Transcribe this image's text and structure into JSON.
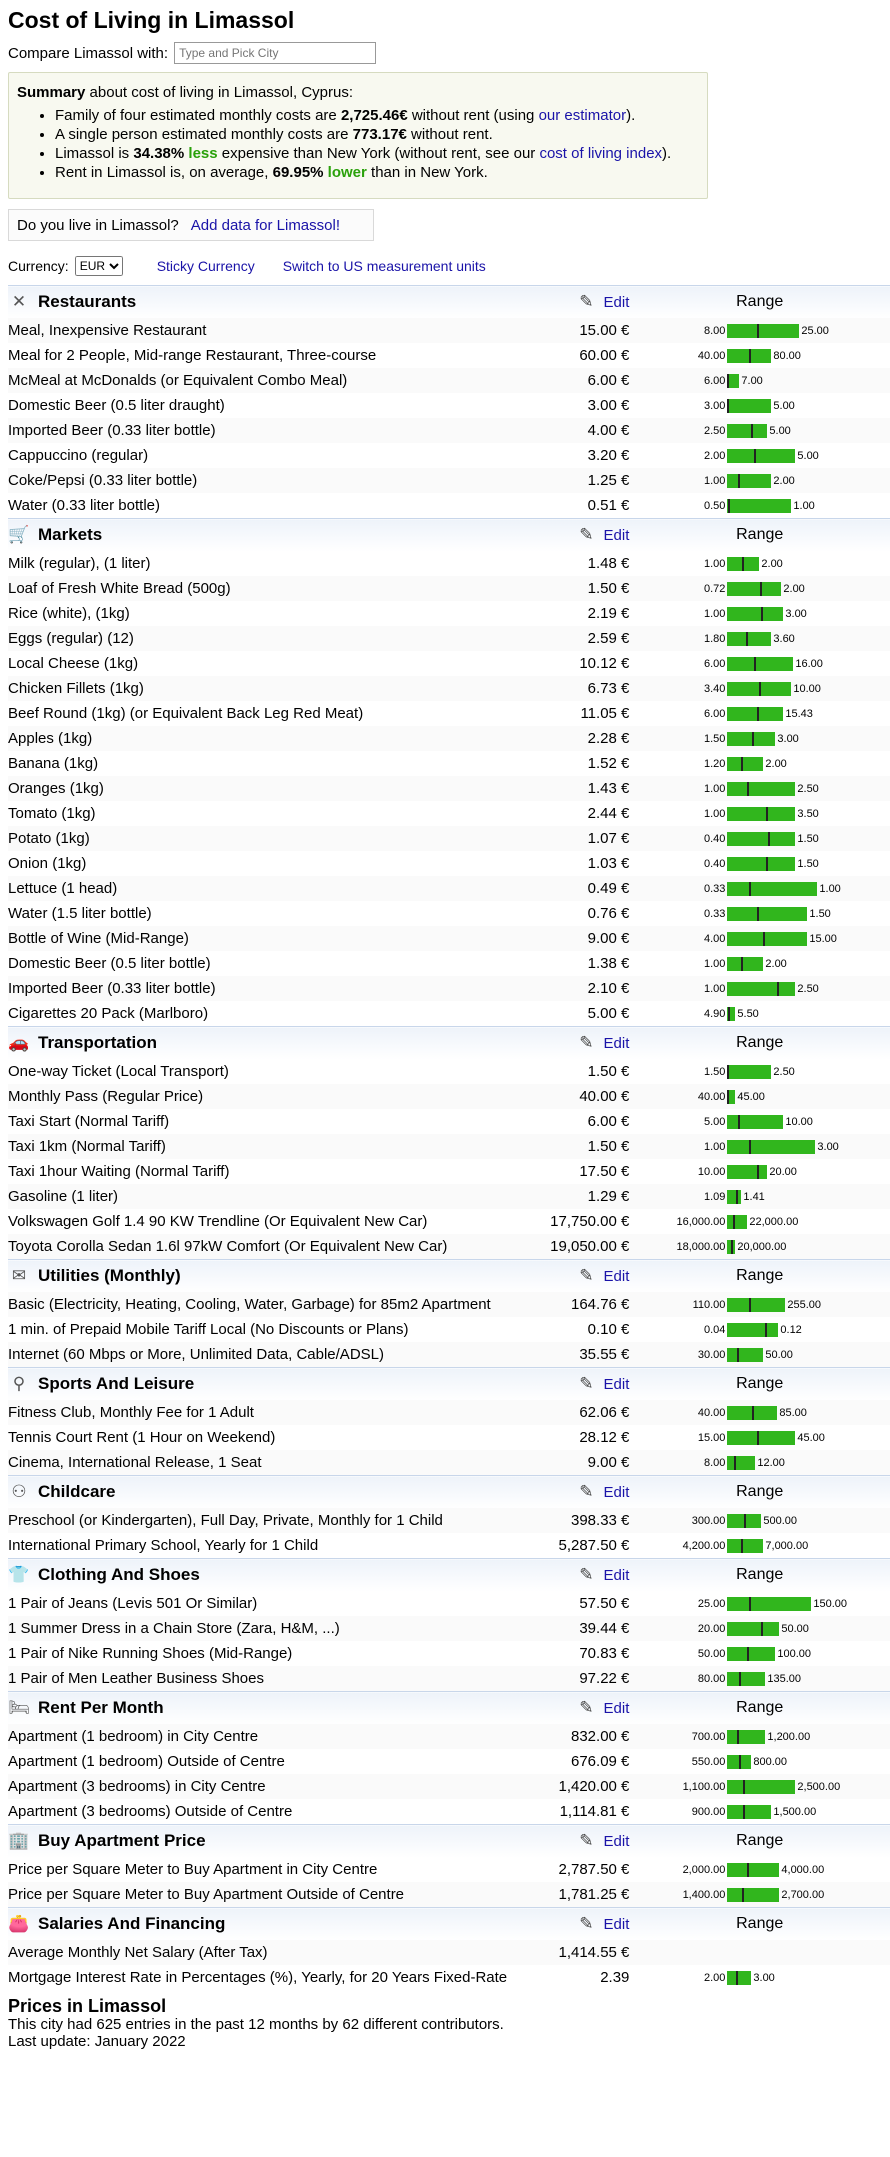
{
  "title": "Cost of Living in Limassol",
  "compare": {
    "label": "Compare Limassol with:",
    "placeholder": "Type and Pick City"
  },
  "summary": {
    "lead_bold": "Summary",
    "lead_rest": " about cost of living in Limassol, Cyprus:",
    "l1_a": "Family of four estimated monthly costs are ",
    "l1_b": "2,725.46€",
    "l1_c": " without rent (using ",
    "l1_link": "our estimator",
    "l1_d": ").",
    "l2_a": "A single person estimated monthly costs are ",
    "l2_b": "773.17€",
    "l2_c": " without rent.",
    "l3_a": "Limassol is ",
    "l3_b": "34.38%",
    "l3_less": "less",
    "l3_c": " expensive than New York (without rent, see our ",
    "l3_link": "cost of living index",
    "l3_d": ").",
    "l4_a": "Rent in Limassol is, on average, ",
    "l4_b": "69.95%",
    "l4_lower": "lower",
    "l4_c": " than in New York."
  },
  "live": {
    "question": "Do you live in Limassol?",
    "link": "Add data for Limassol!"
  },
  "currency": {
    "label": "Currency:",
    "selected": "EUR",
    "sticky": "Sticky Currency",
    "switch": "Switch to US measurement units"
  },
  "edit_label": "Edit",
  "range_label": "Range",
  "categories": [
    {
      "name": "Restaurants",
      "icon": "fork-knife-icon",
      "glyph": "✕",
      "items": [
        {
          "name": "Meal, Inexpensive Restaurant",
          "price": "15.00 €",
          "low": "8.00",
          "high": "25.00",
          "frac": 0.41,
          "span": 0.9
        },
        {
          "name": "Meal for 2 People, Mid-range Restaurant, Three-course",
          "price": "60.00 €",
          "low": "40.00",
          "high": "80.00",
          "frac": 0.5,
          "span": 0.55
        },
        {
          "name": "McMeal at McDonalds (or Equivalent Combo Meal)",
          "price": "6.00 €",
          "low": "6.00",
          "high": "7.00",
          "frac": 0.0,
          "span": 0.15
        },
        {
          "name": "Domestic Beer (0.5 liter draught)",
          "price": "3.00 €",
          "low": "3.00",
          "high": "5.00",
          "frac": 0.0,
          "span": 0.55
        },
        {
          "name": "Imported Beer (0.33 liter bottle)",
          "price": "4.00 €",
          "low": "2.50",
          "high": "5.00",
          "frac": 0.6,
          "span": 0.5
        },
        {
          "name": "Cappuccino (regular)",
          "price": "3.20 €",
          "low": "2.00",
          "high": "5.00",
          "frac": 0.4,
          "span": 0.85
        },
        {
          "name": "Coke/Pepsi (0.33 liter bottle)",
          "price": "1.25 €",
          "low": "1.00",
          "high": "2.00",
          "frac": 0.25,
          "span": 0.55
        },
        {
          "name": "Water (0.33 liter bottle)",
          "price": "0.51 €",
          "low": "0.50",
          "high": "1.00",
          "frac": 0.02,
          "span": 0.8
        }
      ]
    },
    {
      "name": "Markets",
      "icon": "cart-icon",
      "glyph": "🛒",
      "items": [
        {
          "name": "Milk (regular), (1 liter)",
          "price": "1.48 €",
          "low": "1.00",
          "high": "2.00",
          "frac": 0.48,
          "span": 0.4
        },
        {
          "name": "Loaf of Fresh White Bread (500g)",
          "price": "1.50 €",
          "low": "0.72",
          "high": "2.00",
          "frac": 0.61,
          "span": 0.68
        },
        {
          "name": "Rice (white), (1kg)",
          "price": "2.19 €",
          "low": "1.00",
          "high": "3.00",
          "frac": 0.6,
          "span": 0.7
        },
        {
          "name": "Eggs (regular) (12)",
          "price": "2.59 €",
          "low": "1.80",
          "high": "3.60",
          "frac": 0.44,
          "span": 0.55
        },
        {
          "name": "Local Cheese (1kg)",
          "price": "10.12 €",
          "low": "6.00",
          "high": "16.00",
          "frac": 0.41,
          "span": 0.82
        },
        {
          "name": "Chicken Fillets (1kg)",
          "price": "6.73 €",
          "low": "3.40",
          "high": "10.00",
          "frac": 0.5,
          "span": 0.8
        },
        {
          "name": "Beef Round (1kg) (or Equivalent Back Leg Red Meat)",
          "price": "11.05 €",
          "low": "6.00",
          "high": "15.43",
          "frac": 0.54,
          "span": 0.7
        },
        {
          "name": "Apples (1kg)",
          "price": "2.28 €",
          "low": "1.50",
          "high": "3.00",
          "frac": 0.52,
          "span": 0.6
        },
        {
          "name": "Banana (1kg)",
          "price": "1.52 €",
          "low": "1.20",
          "high": "2.00",
          "frac": 0.4,
          "span": 0.45
        },
        {
          "name": "Oranges (1kg)",
          "price": "1.43 €",
          "low": "1.00",
          "high": "2.50",
          "frac": 0.29,
          "span": 0.85
        },
        {
          "name": "Tomato (1kg)",
          "price": "2.44 €",
          "low": "1.00",
          "high": "3.50",
          "frac": 0.58,
          "span": 0.85
        },
        {
          "name": "Potato (1kg)",
          "price": "1.07 €",
          "low": "0.40",
          "high": "1.50",
          "frac": 0.61,
          "span": 0.85
        },
        {
          "name": "Onion (1kg)",
          "price": "1.03 €",
          "low": "0.40",
          "high": "1.50",
          "frac": 0.57,
          "span": 0.85
        },
        {
          "name": "Lettuce (1 head)",
          "price": "0.49 €",
          "low": "0.33",
          "high": "1.00",
          "frac": 0.24,
          "span": 1.13
        },
        {
          "name": "Water (1.5 liter bottle)",
          "price": "0.76 €",
          "low": "0.33",
          "high": "1.50",
          "frac": 0.37,
          "span": 1.0
        },
        {
          "name": "Bottle of Wine (Mid-Range)",
          "price": "9.00 €",
          "low": "4.00",
          "high": "15.00",
          "frac": 0.45,
          "span": 1.0
        },
        {
          "name": "Domestic Beer (0.5 liter bottle)",
          "price": "1.38 €",
          "low": "1.00",
          "high": "2.00",
          "frac": 0.38,
          "span": 0.45
        },
        {
          "name": "Imported Beer (0.33 liter bottle)",
          "price": "2.10 €",
          "low": "1.00",
          "high": "2.50",
          "frac": 0.73,
          "span": 0.85
        },
        {
          "name": "Cigarettes 20 Pack (Marlboro)",
          "price": "5.00 €",
          "low": "4.90",
          "high": "5.50",
          "frac": 0.17,
          "span": 0.1
        }
      ]
    },
    {
      "name": "Transportation",
      "icon": "car-icon",
      "glyph": "🚗",
      "items": [
        {
          "name": "One-way Ticket (Local Transport)",
          "price": "1.50 €",
          "low": "1.50",
          "high": "2.50",
          "frac": 0.0,
          "span": 0.55
        },
        {
          "name": "Monthly Pass (Regular Price)",
          "price": "40.00 €",
          "low": "40.00",
          "high": "45.00",
          "frac": 0.0,
          "span": 0.1
        },
        {
          "name": "Taxi Start (Normal Tariff)",
          "price": "6.00 €",
          "low": "5.00",
          "high": "10.00",
          "frac": 0.2,
          "span": 0.7
        },
        {
          "name": "Taxi 1km (Normal Tariff)",
          "price": "1.50 €",
          "low": "1.00",
          "high": "3.00",
          "frac": 0.25,
          "span": 1.1
        },
        {
          "name": "Taxi 1hour Waiting (Normal Tariff)",
          "price": "17.50 €",
          "low": "10.00",
          "high": "20.00",
          "frac": 0.75,
          "span": 0.5
        },
        {
          "name": "Gasoline (1 liter)",
          "price": "1.29 €",
          "low": "1.09",
          "high": "1.41",
          "frac": 0.62,
          "span": 0.17
        },
        {
          "name": "Volkswagen Golf 1.4 90 KW Trendline (Or Equivalent New Car)",
          "price": "17,750.00 €",
          "low": "16,000.00",
          "high": "22,000.00",
          "frac": 0.29,
          "span": 0.25
        },
        {
          "name": "Toyota Corolla Sedan 1.6l 97kW Comfort (Or Equivalent New Car)",
          "price": "19,050.00 €",
          "low": "18,000.00",
          "high": "20,000.00",
          "frac": 0.52,
          "span": 0.1
        }
      ]
    },
    {
      "name": "Utilities (Monthly)",
      "icon": "envelope-icon",
      "glyph": "✉",
      "items": [
        {
          "name": "Basic (Electricity, Heating, Cooling, Water, Garbage) for 85m2 Apartment",
          "price": "164.76 €",
          "low": "110.00",
          "high": "255.00",
          "frac": 0.38,
          "span": 0.72
        },
        {
          "name": "1 min. of Prepaid Mobile Tariff Local (No Discounts or Plans)",
          "price": "0.10 €",
          "low": "0.04",
          "high": "0.12",
          "frac": 0.75,
          "span": 0.64
        },
        {
          "name": "Internet (60 Mbps or More, Unlimited Data, Cable/ADSL)",
          "price": "35.55 €",
          "low": "30.00",
          "high": "50.00",
          "frac": 0.28,
          "span": 0.45
        }
      ]
    },
    {
      "name": "Sports And Leisure",
      "icon": "bicycle-icon",
      "glyph": "⚲",
      "items": [
        {
          "name": "Fitness Club, Monthly Fee for 1 Adult",
          "price": "62.06 €",
          "low": "40.00",
          "high": "85.00",
          "frac": 0.49,
          "span": 0.62
        },
        {
          "name": "Tennis Court Rent (1 Hour on Weekend)",
          "price": "28.12 €",
          "low": "15.00",
          "high": "45.00",
          "frac": 0.44,
          "span": 0.85
        },
        {
          "name": "Cinema, International Release, 1 Seat",
          "price": "9.00 €",
          "low": "8.00",
          "high": "12.00",
          "frac": 0.25,
          "span": 0.35
        }
      ]
    },
    {
      "name": "Childcare",
      "icon": "stroller-icon",
      "glyph": "⚇",
      "items": [
        {
          "name": "Preschool (or Kindergarten), Full Day, Private, Monthly for 1 Child",
          "price": "398.33 €",
          "low": "300.00",
          "high": "500.00",
          "frac": 0.49,
          "span": 0.42
        },
        {
          "name": "International Primary School, Yearly for 1 Child",
          "price": "5,287.50 €",
          "low": "4,200.00",
          "high": "7,000.00",
          "frac": 0.39,
          "span": 0.45
        }
      ]
    },
    {
      "name": "Clothing And Shoes",
      "icon": "shirt-icon",
      "glyph": "👕",
      "items": [
        {
          "name": "1 Pair of Jeans (Levis 501 Or Similar)",
          "price": "57.50 €",
          "low": "25.00",
          "high": "150.00",
          "frac": 0.26,
          "span": 1.05
        },
        {
          "name": "1 Summer Dress in a Chain Store (Zara, H&M, ...)",
          "price": "39.44 €",
          "low": "20.00",
          "high": "50.00",
          "frac": 0.65,
          "span": 0.65
        },
        {
          "name": "1 Pair of Nike Running Shoes (Mid-Range)",
          "price": "70.83 €",
          "low": "50.00",
          "high": "100.00",
          "frac": 0.42,
          "span": 0.6
        },
        {
          "name": "1 Pair of Men Leather Business Shoes",
          "price": "97.22 €",
          "low": "80.00",
          "high": "135.00",
          "frac": 0.31,
          "span": 0.48
        }
      ]
    },
    {
      "name": "Rent Per Month",
      "icon": "bed-icon",
      "glyph": "🛏",
      "items": [
        {
          "name": "Apartment (1 bedroom) in City Centre",
          "price": "832.00 €",
          "low": "700.00",
          "high": "1,200.00",
          "frac": 0.26,
          "span": 0.48
        },
        {
          "name": "Apartment (1 bedroom) Outside of Centre",
          "price": "676.09 €",
          "low": "550.00",
          "high": "800.00",
          "frac": 0.5,
          "span": 0.3
        },
        {
          "name": "Apartment (3 bedrooms) in City Centre",
          "price": "1,420.00 €",
          "low": "1,100.00",
          "high": "2,500.00",
          "frac": 0.23,
          "span": 0.85
        },
        {
          "name": "Apartment (3 bedrooms) Outside of Centre",
          "price": "1,114.81 €",
          "low": "900.00",
          "high": "1,500.00",
          "frac": 0.36,
          "span": 0.55
        }
      ]
    },
    {
      "name": "Buy Apartment Price",
      "icon": "building-icon",
      "glyph": "🏢",
      "items": [
        {
          "name": "Price per Square Meter to Buy Apartment in City Centre",
          "price": "2,787.50 €",
          "low": "2,000.00",
          "high": "4,000.00",
          "frac": 0.39,
          "span": 0.65
        },
        {
          "name": "Price per Square Meter to Buy Apartment Outside of Centre",
          "price": "1,781.25 €",
          "low": "1,400.00",
          "high": "2,700.00",
          "frac": 0.29,
          "span": 0.65
        }
      ]
    },
    {
      "name": "Salaries And Financing",
      "icon": "wallet-icon",
      "glyph": "👛",
      "items": [
        {
          "name": "Average Monthly Net Salary (After Tax)",
          "price": "1,414.55 €",
          "low": "",
          "high": "",
          "frac": null,
          "span": 0
        },
        {
          "name": "Mortgage Interest Rate in Percentages (%), Yearly, for 20 Years Fixed-Rate",
          "price": "2.39",
          "low": "2.00",
          "high": "3.00",
          "frac": 0.39,
          "span": 0.3
        }
      ]
    }
  ],
  "prices_heading": "Prices in Limassol",
  "footer_line1": "This city had 625 entries in the past 12 months by 62 different contributors.",
  "footer_line2": "Last update: January 2022"
}
